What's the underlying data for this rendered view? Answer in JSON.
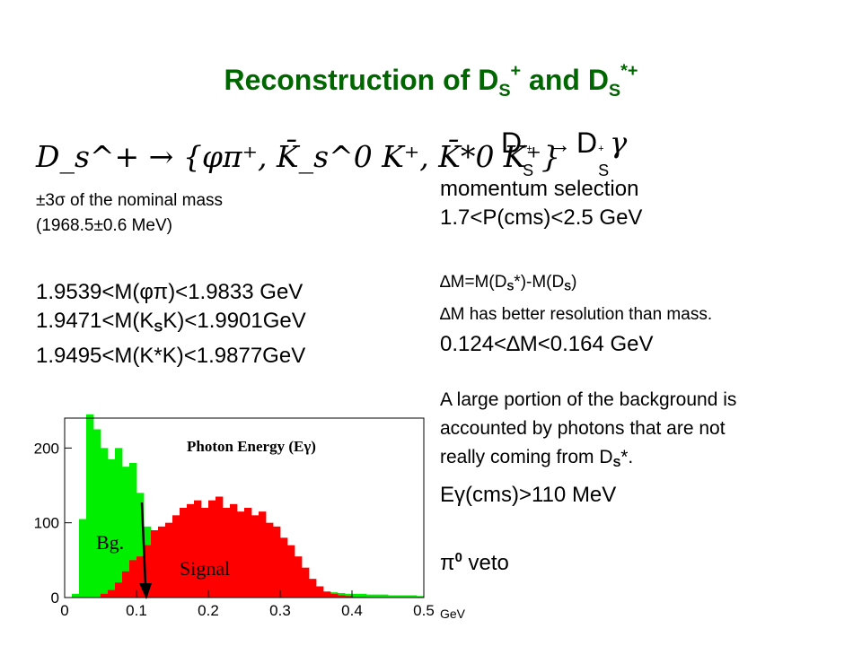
{
  "slide": {
    "title": {
      "main": "Reconstruction of D",
      "sub1": "S",
      "sup1": "+",
      "mid": " and D",
      "sub2": "S",
      "sup2": "*+"
    },
    "left": {
      "decay_formula": "D_s^+ → {φπ⁺, K̄_s^0 K⁺, K̄*0 K⁺}",
      "mass_window_line1": "±3σ of the nominal mass",
      "mass_window_line2": "(1968.5±0.6 MeV)",
      "cut1": {
        "pre": "1.9539<M(",
        "greek": "φπ",
        "post": ")<1.9833 GeV"
      },
      "cut2": {
        "pre": "1.9471<M(K",
        "sub": "S",
        "post": "K)<1.9901GeV"
      },
      "cut3": "1.9495<M(K*K)<1.9877GeV"
    },
    "right": {
      "decay": {
        "d1": "D",
        "s1": "S",
        "sup1": "*+",
        "arrow": "→",
        "d2": "D",
        "s2": "S",
        "sup2": "+",
        "gamma": "γ"
      },
      "momentum_line1": "momentum selection",
      "momentum_line2": "1.7<P(cms)<2.5 GeV",
      "dm_def": {
        "delta": "∆",
        "a": "M=M(D",
        "s1": "S",
        "b": "*)-M(D",
        "s2": "S",
        "c": ")"
      },
      "dm_res": {
        "delta": "∆",
        "text": "M has better resolution than mass."
      },
      "dm_cut": {
        "pre": "0.124<",
        "delta": "∆",
        "post": "M<0.164 GeV"
      },
      "bg_line1": "A large portion of the background is",
      "bg_line2": "accounted by photons that are not",
      "bg_line3_pre": "really coming from D",
      "bg_line3_sub": "S",
      "bg_line3_post": "*.",
      "egamma": {
        "e": "E",
        "gamma": "γ",
        "rest": "(cms)>110 MeV"
      },
      "pi0veto": {
        "pi": "π",
        "sup": "0",
        "rest": " veto"
      }
    }
  },
  "chart_data": {
    "type": "bar",
    "title": "Photon Energy (Eγ)",
    "xlabel": "GeV",
    "xlim": [
      0,
      0.5
    ],
    "ylim": [
      0,
      240
    ],
    "x_ticks": [
      "0",
      "0.1",
      "0.2",
      "0.3",
      "0.4",
      "0.5"
    ],
    "y_ticks": [
      "0",
      "100",
      "200"
    ],
    "bin_width": 0.01,
    "series": [
      {
        "name": "Bg.",
        "color": "#00ee00",
        "values": [
          0,
          5,
          105,
          245,
          225,
          200,
          185,
          200,
          175,
          180,
          140,
          95,
          80,
          60,
          45,
          40,
          35,
          45,
          40,
          35,
          30,
          30,
          28,
          30,
          25,
          22,
          20,
          20,
          18,
          18,
          15,
          15,
          12,
          12,
          10,
          8,
          8,
          7,
          6,
          5,
          5,
          5,
          4,
          4,
          4,
          3,
          3,
          3,
          3,
          2
        ]
      },
      {
        "name": "Signal",
        "color": "#ff0000",
        "values": [
          0,
          0,
          0,
          0,
          0,
          5,
          10,
          20,
          35,
          50,
          55,
          70,
          90,
          95,
          100,
          110,
          120,
          125,
          130,
          120,
          130,
          135,
          120,
          125,
          115,
          120,
          110,
          115,
          100,
          95,
          80,
          70,
          55,
          40,
          25,
          15,
          8,
          5,
          3,
          2,
          1,
          1,
          0,
          0,
          0,
          0,
          0,
          0,
          0,
          0
        ]
      }
    ],
    "annotations": [
      "Bg.",
      "Signal"
    ],
    "cut_line_x": 0.11
  }
}
